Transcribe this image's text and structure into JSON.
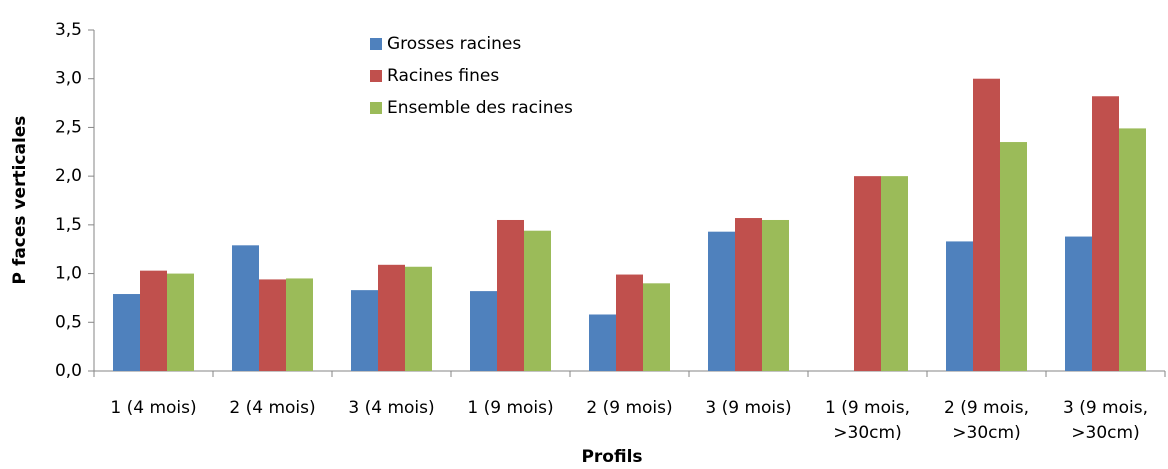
{
  "chart_data": {
    "type": "bar",
    "xlabel": "Profils",
    "ylabel": "P faces verticales",
    "categories": [
      "1 (4 mois)",
      "2 (4 mois)",
      "3 (4 mois)",
      "1 (9 mois)",
      "2 (9 mois)",
      "3 (9 mois)",
      "1  (9 mois, >30cm)",
      "2 (9 mois, >30cm)",
      "3 (9 mois, >30cm)"
    ],
    "series": [
      {
        "name": "Grosses racines",
        "color": "#4f81bd",
        "values": [
          0.79,
          1.29,
          0.83,
          0.82,
          0.58,
          1.43,
          null,
          1.33,
          1.38
        ]
      },
      {
        "name": "Racines fines",
        "color": "#c0504d",
        "values": [
          1.03,
          0.94,
          1.09,
          1.55,
          0.99,
          1.57,
          2.0,
          3.0,
          2.82
        ]
      },
      {
        "name": "Ensemble des racines",
        "color": "#9bbb59",
        "values": [
          1.0,
          0.95,
          1.07,
          1.44,
          0.9,
          1.55,
          2.0,
          2.35,
          2.49
        ]
      }
    ],
    "ylim": [
      0,
      3.5
    ],
    "yticks": [
      {
        "value": 0,
        "label": "0,0"
      },
      {
        "value": 0.5,
        "label": "0,5"
      },
      {
        "value": 1,
        "label": "1,0"
      },
      {
        "value": 1.5,
        "label": "1,5"
      },
      {
        "value": 2,
        "label": "2,0"
      },
      {
        "value": 2.5,
        "label": "2,5"
      },
      {
        "value": 3,
        "label": "3,0"
      },
      {
        "value": 3.5,
        "label": "3,5"
      }
    ],
    "grid": false,
    "legend": "top"
  }
}
